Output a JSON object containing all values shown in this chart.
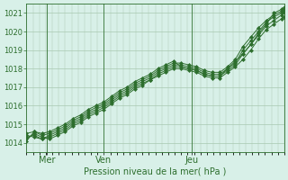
{
  "title": "",
  "xlabel": "Pression niveau de la mer( hPa )",
  "ylabel": "",
  "background_color": "#d8f0e8",
  "grid_color": "#a8c8b0",
  "line_color": "#2d6e2d",
  "ylim": [
    1013.5,
    1021.5
  ],
  "yticks": [
    1014,
    1015,
    1016,
    1017,
    1018,
    1019,
    1020,
    1021
  ],
  "day_labels": [
    "Mer",
    "Ven",
    "Jeu"
  ],
  "day_positions": [
    0.08,
    0.3,
    0.64
  ],
  "lines": [
    [
      0.0,
      1014.2,
      0.03,
      1014.5,
      0.06,
      1014.3,
      0.09,
      1014.2,
      0.12,
      1014.4,
      0.15,
      1014.6,
      0.18,
      1014.9,
      0.21,
      1015.1,
      0.24,
      1015.4,
      0.27,
      1015.6,
      0.3,
      1015.8,
      0.33,
      1016.1,
      0.36,
      1016.4,
      0.39,
      1016.6,
      0.42,
      1016.9,
      0.45,
      1017.1,
      0.48,
      1017.4,
      0.51,
      1017.6,
      0.54,
      1017.8,
      0.57,
      1018.0,
      0.6,
      1018.0,
      0.63,
      1017.9,
      0.66,
      1017.8,
      0.69,
      1017.6,
      0.72,
      1017.5,
      0.75,
      1017.5,
      0.78,
      1017.8,
      0.81,
      1018.1,
      0.84,
      1018.5,
      0.87,
      1019.0,
      0.9,
      1019.6,
      0.93,
      1020.1,
      0.96,
      1020.4,
      0.99,
      1020.7,
      1.0,
      1020.8
    ],
    [
      0.0,
      1014.3,
      0.03,
      1014.4,
      0.06,
      1014.2,
      0.09,
      1014.3,
      0.12,
      1014.5,
      0.15,
      1014.7,
      0.18,
      1015.0,
      0.21,
      1015.2,
      0.24,
      1015.5,
      0.27,
      1015.7,
      0.3,
      1015.9,
      0.33,
      1016.2,
      0.36,
      1016.5,
      0.39,
      1016.7,
      0.42,
      1017.0,
      0.45,
      1017.2,
      0.48,
      1017.4,
      0.51,
      1017.7,
      0.54,
      1017.9,
      0.57,
      1018.1,
      0.6,
      1018.1,
      0.63,
      1018.0,
      0.66,
      1017.9,
      0.69,
      1017.7,
      0.72,
      1017.6,
      0.75,
      1017.6,
      0.78,
      1017.9,
      0.81,
      1018.2,
      0.84,
      1018.8,
      0.87,
      1019.3,
      0.9,
      1019.8,
      0.93,
      1020.3,
      0.96,
      1020.6,
      0.99,
      1020.9,
      1.0,
      1021.0
    ],
    [
      0.0,
      1014.4,
      0.03,
      1014.3,
      0.06,
      1014.2,
      0.09,
      1014.4,
      0.12,
      1014.6,
      0.15,
      1014.8,
      0.18,
      1015.1,
      0.21,
      1015.3,
      0.24,
      1015.6,
      0.27,
      1015.8,
      0.3,
      1016.0,
      0.33,
      1016.3,
      0.36,
      1016.6,
      0.39,
      1016.8,
      0.42,
      1017.1,
      0.45,
      1017.3,
      0.48,
      1017.5,
      0.51,
      1017.8,
      0.54,
      1018.0,
      0.57,
      1018.2,
      0.6,
      1018.2,
      0.63,
      1018.1,
      0.66,
      1018.0,
      0.69,
      1017.8,
      0.72,
      1017.7,
      0.75,
      1017.7,
      0.78,
      1018.0,
      0.81,
      1018.3,
      0.84,
      1019.0,
      0.87,
      1019.5,
      0.9,
      1020.0,
      0.93,
      1020.5,
      0.96,
      1020.8,
      0.99,
      1021.0,
      1.0,
      1021.1
    ],
    [
      0.0,
      1014.5,
      0.03,
      1014.6,
      0.06,
      1014.4,
      0.09,
      1014.5,
      0.12,
      1014.7,
      0.15,
      1014.9,
      0.18,
      1015.2,
      0.21,
      1015.4,
      0.24,
      1015.7,
      0.27,
      1015.9,
      0.3,
      1016.1,
      0.33,
      1016.4,
      0.36,
      1016.7,
      0.39,
      1016.9,
      0.42,
      1017.2,
      0.45,
      1017.4,
      0.48,
      1017.6,
      0.51,
      1017.9,
      0.54,
      1018.1,
      0.57,
      1018.3,
      0.6,
      1018.3,
      0.63,
      1018.2,
      0.66,
      1018.1,
      0.69,
      1017.9,
      0.72,
      1017.8,
      0.75,
      1017.8,
      0.78,
      1018.1,
      0.81,
      1018.5,
      0.84,
      1019.2,
      0.87,
      1019.7,
      0.9,
      1020.2,
      0.93,
      1020.6,
      0.96,
      1020.9,
      0.99,
      1021.1,
      1.0,
      1021.2
    ],
    [
      0.0,
      1014.1,
      0.03,
      1014.6,
      0.06,
      1014.5,
      0.09,
      1014.6,
      0.12,
      1014.8,
      0.15,
      1015.0,
      0.18,
      1015.3,
      0.21,
      1015.5,
      0.24,
      1015.8,
      0.27,
      1016.0,
      0.3,
      1016.2,
      0.33,
      1016.5,
      0.36,
      1016.8,
      0.39,
      1017.0,
      0.42,
      1017.3,
      0.45,
      1017.5,
      0.48,
      1017.7,
      0.51,
      1018.0,
      0.54,
      1018.2,
      0.57,
      1018.4,
      0.6,
      1018.1,
      0.63,
      1018.0,
      0.66,
      1017.9,
      0.69,
      1017.7,
      0.72,
      1017.6,
      0.75,
      1017.6,
      0.78,
      1018.0,
      0.81,
      1018.4,
      0.84,
      1018.8,
      0.87,
      1019.3,
      0.9,
      1019.9,
      0.93,
      1020.4,
      0.96,
      1021.0,
      0.99,
      1021.2,
      1.0,
      1021.3
    ]
  ]
}
